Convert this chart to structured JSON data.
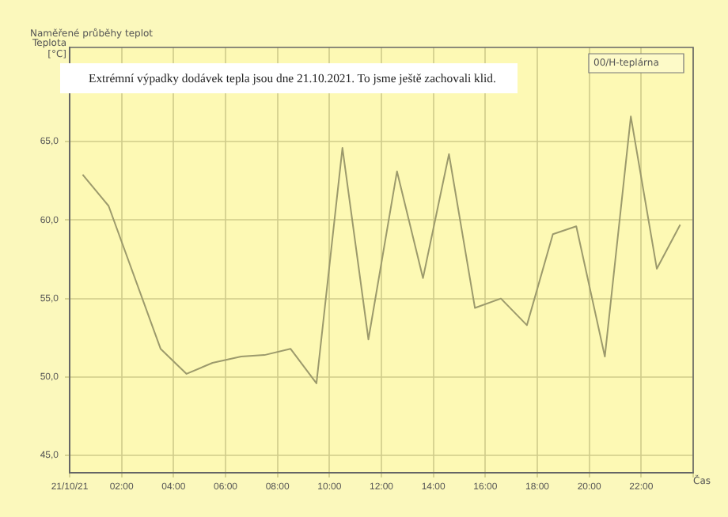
{
  "chart_data": {
    "type": "line",
    "title": "Naměřené průběhy teplot",
    "ylabel": "Teplota [°C]",
    "xlabel": "Čas",
    "annotations": [
      "Extrémní výpadky dodávek tepla jsou dne 21.10.2021.  To jsme ještě zachovali klid."
    ],
    "x": [
      0.5,
      1.5,
      3.5,
      4.5,
      5.5,
      6.6,
      7.5,
      8.5,
      9.5,
      10.5,
      11.5,
      12.6,
      13.6,
      14.6,
      15.6,
      16.6,
      17.6,
      18.6,
      19.5,
      20.6,
      21.6,
      22.6,
      23.5
    ],
    "series": [
      {
        "name": "00/H-teplárna",
        "color": "#9c9a6c",
        "values": [
          62.9,
          60.9,
          51.8,
          50.2,
          50.9,
          51.3,
          51.4,
          51.8,
          49.6,
          64.6,
          52.4,
          63.1,
          56.3,
          64.2,
          54.4,
          55.0,
          53.3,
          59.1,
          59.6,
          51.3,
          66.6,
          56.9,
          59.7
        ]
      }
    ],
    "xlim": [
      0,
      24
    ],
    "xticks": [
      {
        "value": 0,
        "label": "21/10/21"
      },
      {
        "value": 2,
        "label": "02:00"
      },
      {
        "value": 4,
        "label": "04:00"
      },
      {
        "value": 6,
        "label": "06:00"
      },
      {
        "value": 8,
        "label": "08:00"
      },
      {
        "value": 10,
        "label": "10:00"
      },
      {
        "value": 12,
        "label": "12:00"
      },
      {
        "value": 14,
        "label": "14:00"
      },
      {
        "value": 16,
        "label": "16:00"
      },
      {
        "value": 18,
        "label": "18:00"
      },
      {
        "value": 20,
        "label": "20:00"
      },
      {
        "value": 22,
        "label": "22:00"
      },
      {
        "value": 24,
        "label": null
      }
    ],
    "ylim": [
      43.9,
      71
    ],
    "yticks": [
      {
        "value": 45,
        "label": "45,0"
      },
      {
        "value": 50,
        "label": "50,0"
      },
      {
        "value": 55,
        "label": "55,0"
      },
      {
        "value": 60,
        "label": "60,0"
      },
      {
        "value": 65,
        "label": "65,0"
      }
    ],
    "grid": true,
    "legend": "top right",
    "marker": "none",
    "line_style": "solid"
  }
}
